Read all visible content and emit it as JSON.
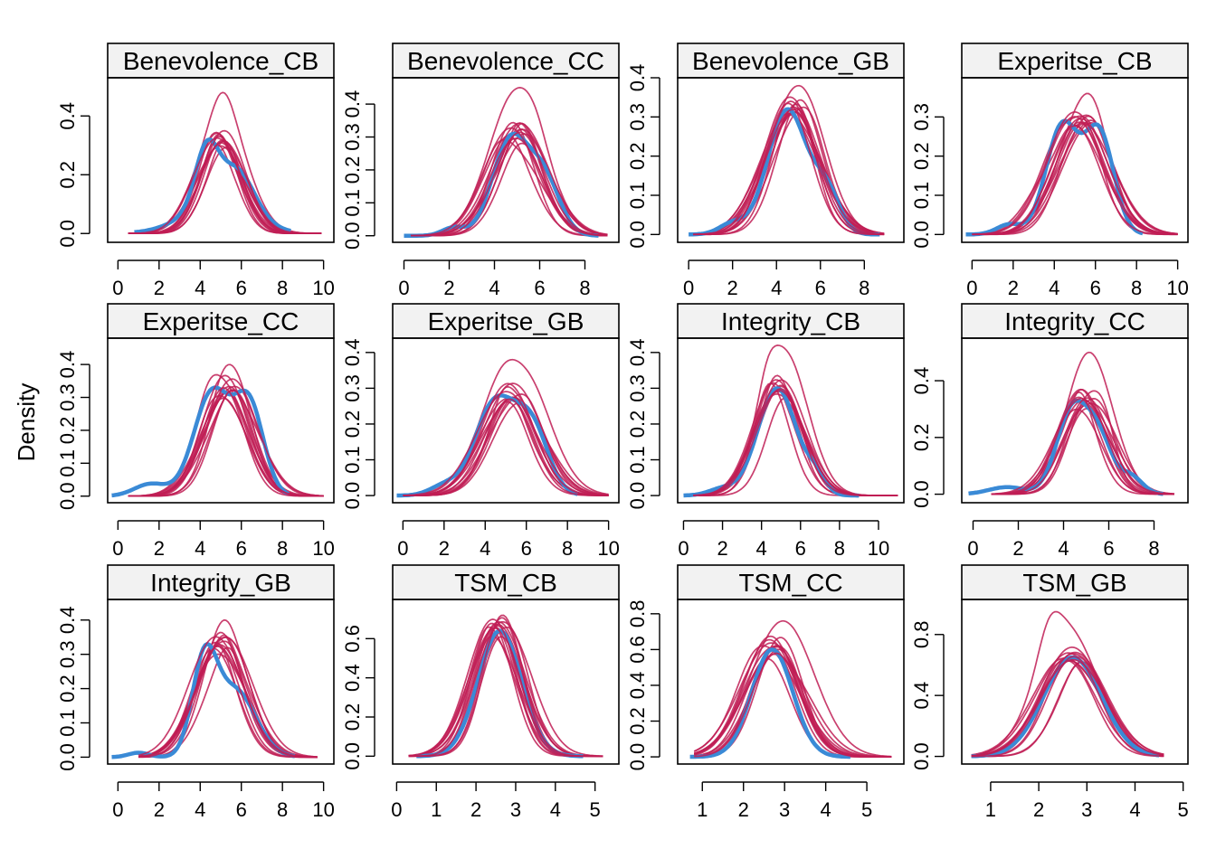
{
  "y_axis_label": "Density",
  "colors": {
    "observed": "#3a8ad6",
    "imputed": "#c01d55",
    "strip_bg": "#f2f2f2"
  },
  "chart_data": {
    "type": "line",
    "ylabel": "Density",
    "description": "densityplot panels: observed (blue, thick) vs imputed (red, thin) distributions",
    "panels": [
      {
        "title": "Benevolence_CB",
        "xticks": [
          0,
          2,
          4,
          6,
          8,
          10
        ],
        "xlim": [
          -0.5,
          10.5
        ],
        "yticks": [
          0.0,
          0.2,
          0.4
        ],
        "ytick_labels": [
          "0.0",
          "0.2",
          "0.4"
        ],
        "ylim": [
          -0.03,
          0.53
        ],
        "observed": {
          "range": [
            0.8,
            8.4
          ],
          "comps": [
            [
              4.3,
              0.55,
              0.58
            ],
            [
              5.8,
              0.85,
              0.42
            ],
            [
              4.8,
              1.6,
              0.3
            ]
          ]
        },
        "imputed": {
          "count": 10,
          "range": [
            0.5,
            9.9
          ],
          "center": 5.0,
          "sd": 1.05,
          "peak": 0.32,
          "peak_max": 0.48
        }
      },
      {
        "title": "Benevolence_CC",
        "xticks": [
          0,
          2,
          4,
          6,
          8
        ],
        "xlim": [
          -0.5,
          9.5
        ],
        "yticks": [
          0.0,
          0.1,
          0.2,
          0.3,
          0.4
        ],
        "ytick_labels": [
          "0.0",
          "0.1",
          "0.2",
          "0.3",
          "0.4"
        ],
        "ylim": [
          -0.02,
          0.48
        ],
        "observed": {
          "range": [
            0.0,
            8.6
          ],
          "comps": [
            [
              4.7,
              0.8,
              0.7
            ],
            [
              6.2,
              0.7,
              0.4
            ],
            [
              2.2,
              0.5,
              0.06
            ]
          ]
        },
        "imputed": {
          "count": 10,
          "range": [
            0.3,
            9.0
          ],
          "center": 4.9,
          "sd": 1.15,
          "peak": 0.31,
          "peak_max": 0.45
        }
      },
      {
        "title": "Benevolence_GB",
        "xticks": [
          0,
          2,
          4,
          6,
          8
        ],
        "xlim": [
          -0.5,
          9.8
        ],
        "yticks": [
          0.0,
          0.1,
          0.2,
          0.3,
          0.4
        ],
        "ytick_labels": [
          "0.0",
          "0.1",
          "0.2",
          "0.3",
          "0.4"
        ],
        "ylim": [
          -0.02,
          0.4
        ],
        "observed": {
          "range": [
            0.0,
            8.7
          ],
          "comps": [
            [
              4.5,
              0.9,
              0.8
            ],
            [
              6.3,
              0.6,
              0.25
            ],
            [
              2.0,
              0.6,
              0.07
            ]
          ]
        },
        "imputed": {
          "count": 10,
          "range": [
            0.2,
            8.9
          ],
          "center": 4.8,
          "sd": 1.2,
          "peak": 0.32,
          "peak_max": 0.38
        }
      },
      {
        "title": "Experitse_CB",
        "xticks": [
          0,
          2,
          4,
          6,
          8,
          10
        ],
        "xlim": [
          -0.5,
          10.5
        ],
        "yticks": [
          0.0,
          0.1,
          0.2,
          0.3
        ],
        "ytick_labels": [
          "0.0",
          "0.1",
          "0.2",
          "0.3"
        ],
        "ylim": [
          -0.02,
          0.4
        ],
        "observed": {
          "range": [
            -0.3,
            8.3
          ],
          "comps": [
            [
              4.4,
              0.8,
              0.55
            ],
            [
              6.2,
              0.7,
              0.5
            ],
            [
              1.8,
              0.6,
              0.05
            ]
          ]
        },
        "imputed": {
          "count": 10,
          "range": [
            0.0,
            10.0
          ],
          "center": 5.2,
          "sd": 1.3,
          "peak": 0.29,
          "peak_max": 0.36
        }
      },
      {
        "title": "Experitse_CC",
        "xticks": [
          0,
          2,
          4,
          6,
          8,
          10
        ],
        "xlim": [
          -0.5,
          10.5
        ],
        "yticks": [
          0.0,
          0.1,
          0.2,
          0.3,
          0.4
        ],
        "ytick_labels": [
          "0.0",
          "0.1",
          "0.2",
          "0.3",
          "0.4"
        ],
        "ylim": [
          -0.02,
          0.48
        ],
        "observed": {
          "range": [
            -0.3,
            8.3
          ],
          "comps": [
            [
              4.6,
              0.9,
              0.6
            ],
            [
              6.4,
              0.7,
              0.5
            ],
            [
              1.6,
              0.8,
              0.07
            ]
          ]
        },
        "imputed": {
          "count": 10,
          "range": [
            0.5,
            10.0
          ],
          "center": 5.3,
          "sd": 1.15,
          "peak": 0.33,
          "peak_max": 0.4
        }
      },
      {
        "title": "Experitse_GB",
        "xticks": [
          0,
          2,
          4,
          6,
          8,
          10
        ],
        "xlim": [
          -0.5,
          10.5
        ],
        "yticks": [
          0.0,
          0.1,
          0.2,
          0.3,
          0.4
        ],
        "ytick_labels": [
          "0.0",
          "0.1",
          "0.2",
          "0.3",
          "0.4"
        ],
        "ylim": [
          -0.02,
          0.44
        ],
        "observed": {
          "range": [
            -0.3,
            8.5
          ],
          "comps": [
            [
              4.5,
              1.0,
              0.6
            ],
            [
              6.3,
              0.8,
              0.4
            ],
            [
              2.0,
              0.7,
              0.06
            ]
          ]
        },
        "imputed": {
          "count": 10,
          "range": [
            0.0,
            10.0
          ],
          "center": 5.2,
          "sd": 1.3,
          "peak": 0.28,
          "peak_max": 0.38
        }
      },
      {
        "title": "Integrity_CB",
        "xticks": [
          0,
          2,
          4,
          6,
          8,
          10
        ],
        "xlim": [
          -0.3,
          11.3
        ],
        "yticks": [
          0.0,
          0.1,
          0.2,
          0.3,
          0.4
        ],
        "ytick_labels": [
          "0.0",
          "0.1",
          "0.2",
          "0.3",
          "0.4"
        ],
        "ylim": [
          -0.02,
          0.44
        ],
        "observed": {
          "range": [
            0.0,
            9.0
          ],
          "comps": [
            [
              4.8,
              1.0,
              0.8
            ],
            [
              6.8,
              0.5,
              0.12
            ],
            [
              2.0,
              0.7,
              0.05
            ]
          ]
        },
        "imputed": {
          "count": 10,
          "range": [
            0.5,
            11.0
          ],
          "center": 4.9,
          "sd": 1.15,
          "peak": 0.3,
          "peak_max": 0.42
        }
      },
      {
        "title": "Integrity_CC",
        "xticks": [
          0,
          2,
          4,
          6,
          8
        ],
        "xlim": [
          -0.5,
          9.5
        ],
        "yticks": [
          0.0,
          0.2,
          0.4
        ],
        "ytick_labels": [
          "0.0",
          "0.2",
          "0.4"
        ],
        "ylim": [
          -0.03,
          0.55
        ],
        "observed": {
          "range": [
            -0.2,
            8.4
          ],
          "comps": [
            [
              4.4,
              0.7,
              0.6
            ],
            [
              5.6,
              0.6,
              0.35
            ],
            [
              7.0,
              0.5,
              0.12
            ],
            [
              1.5,
              0.8,
              0.05
            ]
          ]
        },
        "imputed": {
          "count": 10,
          "range": [
            0.8,
            8.9
          ],
          "center": 4.9,
          "sd": 1.05,
          "peak": 0.33,
          "peak_max": 0.5
        }
      },
      {
        "title": "Integrity_GB",
        "xticks": [
          0,
          2,
          4,
          6,
          8,
          10
        ],
        "xlim": [
          -0.5,
          10.5
        ],
        "yticks": [
          0.0,
          0.1,
          0.2,
          0.3,
          0.4
        ],
        "ytick_labels": [
          "0.0",
          "0.1",
          "0.2",
          "0.3",
          "0.4"
        ],
        "ylim": [
          -0.02,
          0.46
        ],
        "observed": {
          "range": [
            -0.3,
            8.6
          ],
          "comps": [
            [
              4.2,
              0.6,
              0.6
            ],
            [
              5.7,
              1.0,
              0.45
            ],
            [
              1.0,
              0.5,
              0.03
            ]
          ]
        },
        "imputed": {
          "count": 10,
          "range": [
            1.0,
            9.7
          ],
          "center": 5.0,
          "sd": 1.15,
          "peak": 0.33,
          "peak_max": 0.4
        }
      },
      {
        "title": "TSM_CB",
        "xticks": [
          0,
          1,
          2,
          3,
          4,
          5
        ],
        "xlim": [
          -0.1,
          5.6
        ],
        "yticks": [
          0.0,
          0.2,
          0.4,
          0.6
        ],
        "ytick_labels": [
          "0.0",
          "0.2",
          "0.4",
          "0.6"
        ],
        "ylim": [
          -0.04,
          0.8
        ],
        "observed": {
          "range": [
            0.5,
            4.7
          ],
          "comps": [
            [
              2.6,
              0.55,
              1.0
            ]
          ]
        },
        "imputed": {
          "count": 10,
          "range": [
            0.3,
            5.2
          ],
          "center": 2.55,
          "sd": 0.6,
          "peak": 0.64,
          "peak_max": 0.72
        }
      },
      {
        "title": "TSM_CC",
        "xticks": [
          1,
          2,
          3,
          4,
          5
        ],
        "xlim": [
          0.4,
          5.9
        ],
        "yticks": [
          0.0,
          0.2,
          0.4,
          0.6,
          0.8
        ],
        "ytick_labels": [
          "0.0",
          "0.2",
          "0.4",
          "0.6",
          "0.8"
        ],
        "ylim": [
          -0.04,
          0.88
        ],
        "observed": {
          "range": [
            0.7,
            4.6
          ],
          "comps": [
            [
              2.7,
              0.5,
              1.0
            ]
          ]
        },
        "imputed": {
          "count": 10,
          "range": [
            0.8,
            5.6
          ],
          "center": 2.75,
          "sd": 0.68,
          "peak": 0.6,
          "peak_max": 0.76
        }
      },
      {
        "title": "TSM_GB",
        "xticks": [
          1,
          2,
          3,
          4,
          5
        ],
        "xlim": [
          0.4,
          5.1
        ],
        "yticks": [
          0.0,
          0.4,
          0.8
        ],
        "ytick_labels": [
          "0.0",
          "0.4",
          "0.8"
        ],
        "ylim": [
          -0.05,
          1.03
        ],
        "observed": {
          "range": [
            0.6,
            4.5
          ],
          "comps": [
            [
              2.7,
              0.6,
              1.0
            ]
          ]
        },
        "imputed": {
          "count": 10,
          "range": [
            0.6,
            4.6
          ],
          "center": 2.75,
          "sd": 0.6,
          "peak": 0.65,
          "peak_max": 0.95
        }
      }
    ]
  }
}
